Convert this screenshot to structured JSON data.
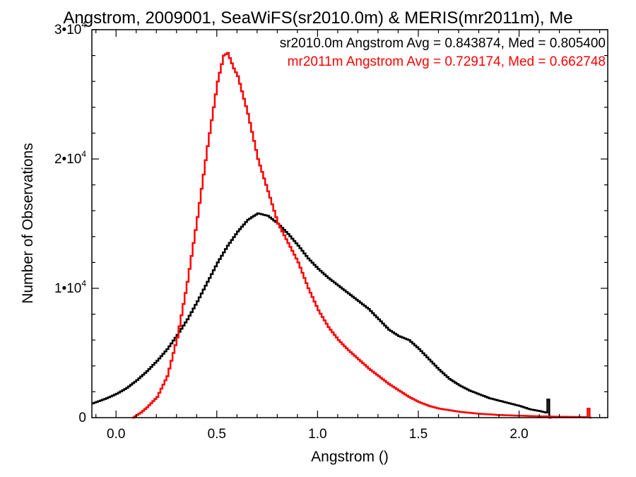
{
  "chart_data": {
    "type": "line",
    "title": "Angstrom, 2009001, SeaWiFS(sr2010.0m) & MERIS(mr2011m), Me",
    "xlabel": "Angstrom ()",
    "ylabel": "Number of Observations",
    "xlim": [
      -0.12,
      2.44
    ],
    "ylim": [
      0,
      30000
    ],
    "x_ticks": [
      {
        "value": 0.0,
        "label": "0.0"
      },
      {
        "value": 0.5,
        "label": "0.5"
      },
      {
        "value": 1.0,
        "label": "1.0"
      },
      {
        "value": 1.5,
        "label": "1.5"
      },
      {
        "value": 2.0,
        "label": "2.0"
      }
    ],
    "y_ticks": [
      {
        "value": 0,
        "base": "0",
        "exp": ""
      },
      {
        "value": 10000,
        "base": "1•10",
        "exp": "4"
      },
      {
        "value": 20000,
        "base": "2•10",
        "exp": "4"
      },
      {
        "value": 30000,
        "base": "3•10",
        "exp": "4"
      }
    ],
    "grid": false,
    "legend_placement": "top-right",
    "series": [
      {
        "name": "sr2010.0m Angstrom Avg = 0.843874, Med = 0.805400",
        "color": "#000000",
        "points": [
          [
            -0.12,
            1100
          ],
          [
            -0.05,
            1500
          ],
          [
            0.0,
            1850
          ],
          [
            0.05,
            2300
          ],
          [
            0.1,
            2900
          ],
          [
            0.15,
            3600
          ],
          [
            0.2,
            4400
          ],
          [
            0.25,
            5300
          ],
          [
            0.3,
            6400
          ],
          [
            0.35,
            7600
          ],
          [
            0.4,
            9000
          ],
          [
            0.45,
            10500
          ],
          [
            0.5,
            12000
          ],
          [
            0.55,
            13300
          ],
          [
            0.6,
            14400
          ],
          [
            0.65,
            15300
          ],
          [
            0.7,
            15800
          ],
          [
            0.75,
            15600
          ],
          [
            0.8,
            15000
          ],
          [
            0.85,
            14200
          ],
          [
            0.9,
            13300
          ],
          [
            0.95,
            12300
          ],
          [
            1.0,
            11500
          ],
          [
            1.05,
            10800
          ],
          [
            1.1,
            10200
          ],
          [
            1.15,
            9600
          ],
          [
            1.2,
            9000
          ],
          [
            1.25,
            8400
          ],
          [
            1.3,
            7600
          ],
          [
            1.35,
            6800
          ],
          [
            1.4,
            6300
          ],
          [
            1.45,
            6000
          ],
          [
            1.5,
            5300
          ],
          [
            1.55,
            4500
          ],
          [
            1.6,
            3700
          ],
          [
            1.65,
            3000
          ],
          [
            1.7,
            2500
          ],
          [
            1.75,
            2100
          ],
          [
            1.8,
            1800
          ],
          [
            1.85,
            1500
          ],
          [
            1.9,
            1300
          ],
          [
            1.95,
            1100
          ],
          [
            2.0,
            900
          ],
          [
            2.05,
            650
          ],
          [
            2.1,
            500
          ],
          [
            2.13,
            400
          ],
          [
            2.14,
            1400
          ],
          [
            2.15,
            0
          ]
        ]
      },
      {
        "name": "mr2011m Angstrom Avg = 0.729174, Med = 0.662748",
        "color": "#ff0000",
        "points": [
          [
            0.08,
            0
          ],
          [
            0.12,
            400
          ],
          [
            0.15,
            800
          ],
          [
            0.2,
            1600
          ],
          [
            0.25,
            3200
          ],
          [
            0.3,
            6200
          ],
          [
            0.35,
            10500
          ],
          [
            0.4,
            15500
          ],
          [
            0.45,
            21000
          ],
          [
            0.5,
            26000
          ],
          [
            0.53,
            28000
          ],
          [
            0.55,
            28200
          ],
          [
            0.58,
            27000
          ],
          [
            0.6,
            26400
          ],
          [
            0.65,
            23500
          ],
          [
            0.7,
            20000
          ],
          [
            0.75,
            17500
          ],
          [
            0.8,
            15000
          ],
          [
            0.85,
            13500
          ],
          [
            0.9,
            12000
          ],
          [
            0.95,
            10000
          ],
          [
            1.0,
            8300
          ],
          [
            1.05,
            7000
          ],
          [
            1.1,
            6000
          ],
          [
            1.15,
            5200
          ],
          [
            1.2,
            4500
          ],
          [
            1.25,
            3800
          ],
          [
            1.3,
            3200
          ],
          [
            1.35,
            2600
          ],
          [
            1.4,
            2100
          ],
          [
            1.45,
            1600
          ],
          [
            1.5,
            1200
          ],
          [
            1.55,
            900
          ],
          [
            1.6,
            700
          ],
          [
            1.7,
            450
          ],
          [
            1.8,
            300
          ],
          [
            1.9,
            200
          ],
          [
            2.0,
            150
          ],
          [
            2.1,
            100
          ],
          [
            2.2,
            70
          ],
          [
            2.3,
            50
          ],
          [
            2.33,
            40
          ],
          [
            2.34,
            700
          ],
          [
            2.35,
            0
          ]
        ]
      }
    ]
  }
}
